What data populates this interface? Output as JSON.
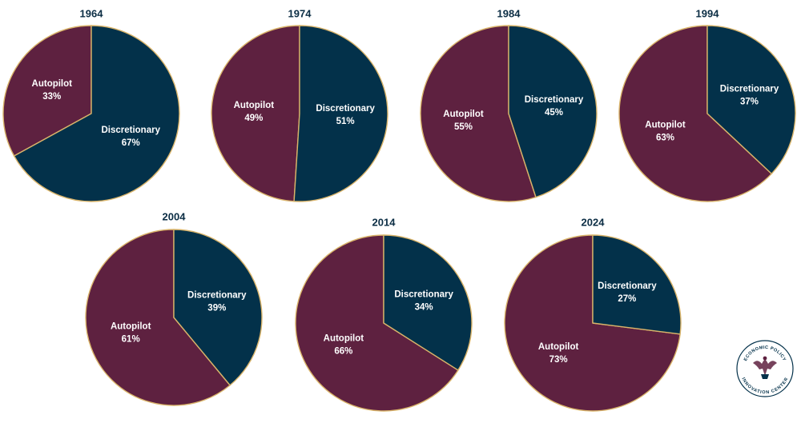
{
  "colors": {
    "autopilot": "#5E2140",
    "discretionary": "#03314A",
    "divider": "#D9B46A",
    "title": "#0B2D44",
    "label": "#FFFFFF"
  },
  "chart_data": [
    {
      "type": "pie",
      "title": "1964",
      "categories": [
        "Autopilot",
        "Discretionary"
      ],
      "values": [
        33,
        67
      ],
      "value_labels": [
        "33%",
        "67%"
      ]
    },
    {
      "type": "pie",
      "title": "1974",
      "categories": [
        "Autopilot",
        "Discretionary"
      ],
      "values": [
        49,
        51
      ],
      "value_labels": [
        "49%",
        "51%"
      ]
    },
    {
      "type": "pie",
      "title": "1984",
      "categories": [
        "Autopilot",
        "Discretionary"
      ],
      "values": [
        55,
        45
      ],
      "value_labels": [
        "55%",
        "45%"
      ]
    },
    {
      "type": "pie",
      "title": "1994",
      "categories": [
        "Autopilot",
        "Discretionary"
      ],
      "values": [
        63,
        37
      ],
      "value_labels": [
        "63%",
        "37%"
      ]
    },
    {
      "type": "pie",
      "title": "2004",
      "categories": [
        "Autopilot",
        "Discretionary"
      ],
      "values": [
        61,
        39
      ],
      "value_labels": [
        "61%",
        "39%"
      ]
    },
    {
      "type": "pie",
      "title": "2014",
      "categories": [
        "Autopilot",
        "Discretionary"
      ],
      "values": [
        66,
        34
      ],
      "value_labels": [
        "66%",
        "34%"
      ]
    },
    {
      "type": "pie",
      "title": "2024",
      "categories": [
        "Autopilot",
        "Discretionary"
      ],
      "values": [
        73,
        27
      ],
      "value_labels": [
        "73%",
        "27%"
      ]
    }
  ],
  "logo": {
    "top_text": "ECONOMIC POLICY",
    "bottom_text": "INNOVATION CENTER"
  }
}
